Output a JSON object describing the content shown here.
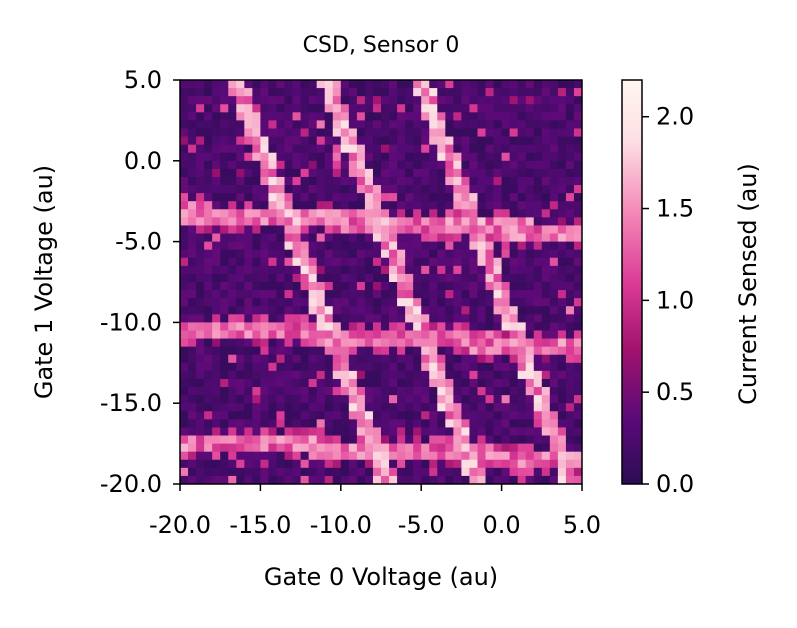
{
  "chart_data": {
    "type": "heatmap",
    "title": "CSD, Sensor 0",
    "xlabel": "Gate 0 Voltage (au)",
    "ylabel": "Gate 1 Voltage (au)",
    "colorbar_label": "Current Sensed (au)",
    "xlim": [
      -20.0,
      5.0
    ],
    "ylim": [
      -20.0,
      5.0
    ],
    "x_ticks": [
      "-20.0",
      "-15.0",
      "-10.0",
      "-5.0",
      "0.0",
      "5.0"
    ],
    "y_ticks": [
      "5.0",
      "0.0",
      "-5.0",
      "-10.0",
      "-15.0",
      "-20.0"
    ],
    "colorbar_ticks": [
      "2.0",
      "1.5",
      "1.0",
      "0.5",
      "0.0"
    ],
    "value_range": [
      0.0,
      2.2
    ],
    "grid_resolution": 50,
    "colormap": [
      "#2c0c55",
      "#5a0a78",
      "#a0126e",
      "#dc3c96",
      "#f48cba",
      "#fde0e4",
      "#fff5f0"
    ],
    "transition_lines": {
      "diagonal_x_at_top": [
        -16.6,
        -10.9,
        -5.1
      ],
      "diagonal_slope_x_per_y": -0.38,
      "horizontal_y_at_left": [
        -3.2,
        -10.3,
        -17.3
      ],
      "horizontal_slope_y_per_x": -0.05,
      "line_peak_value": 1.5,
      "background_mean_value": 0.25
    },
    "grid": false,
    "colorbar_position": "right"
  }
}
